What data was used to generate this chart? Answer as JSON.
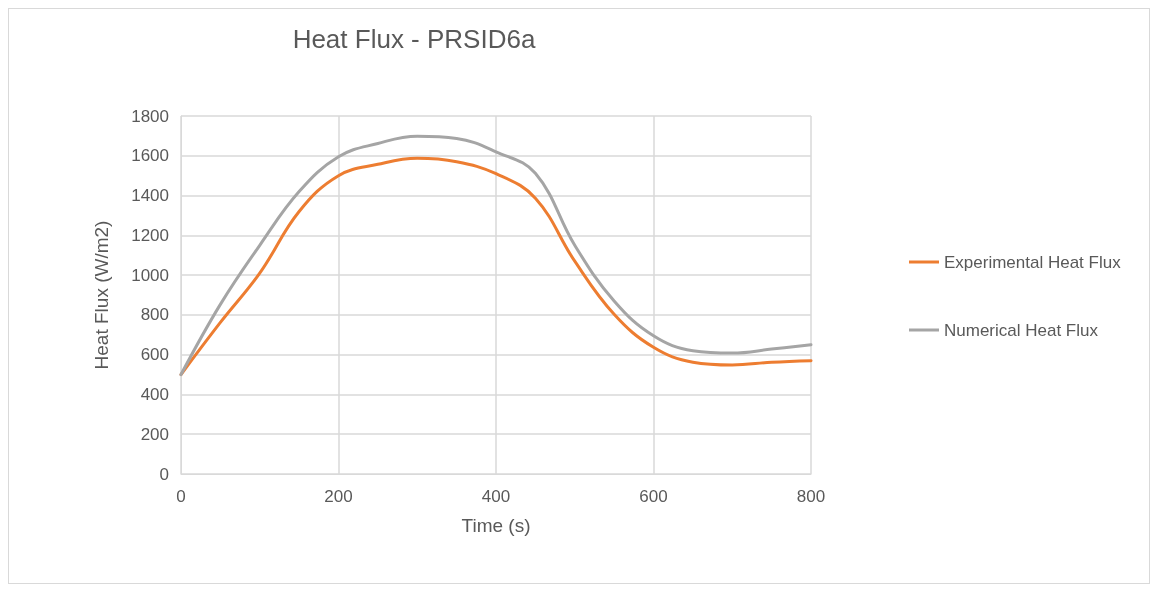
{
  "chart_data": {
    "type": "line",
    "title": "Heat Flux - PRSID6a",
    "xlabel": "Time (s)",
    "ylabel": "Heat Flux (W/m2)",
    "x": [
      0,
      50,
      100,
      150,
      200,
      250,
      300,
      350,
      400,
      450,
      500,
      550,
      600,
      650,
      700,
      750,
      800
    ],
    "series": [
      {
        "name": "Experimental Heat Flux",
        "color": "#ed7d31",
        "values": [
          500,
          762,
          1010,
          1320,
          1500,
          1557,
          1587,
          1570,
          1510,
          1387,
          1070,
          803,
          637,
          562,
          548,
          562,
          570
        ]
      },
      {
        "name": "Numerical Heat Flux",
        "color": "#a5a5a5",
        "values": [
          500,
          853,
          1150,
          1420,
          1595,
          1662,
          1698,
          1687,
          1620,
          1512,
          1150,
          870,
          695,
          620,
          608,
          628,
          650
        ]
      }
    ],
    "xlim": [
      0,
      800
    ],
    "xticks": [
      0,
      200,
      400,
      600,
      800
    ],
    "ylim": [
      0,
      1800
    ],
    "yticks": [
      0,
      200,
      400,
      600,
      800,
      1000,
      1200,
      1400,
      1600,
      1800
    ],
    "grid": true,
    "legend": "right",
    "marker": "none",
    "line_style": "solid"
  }
}
